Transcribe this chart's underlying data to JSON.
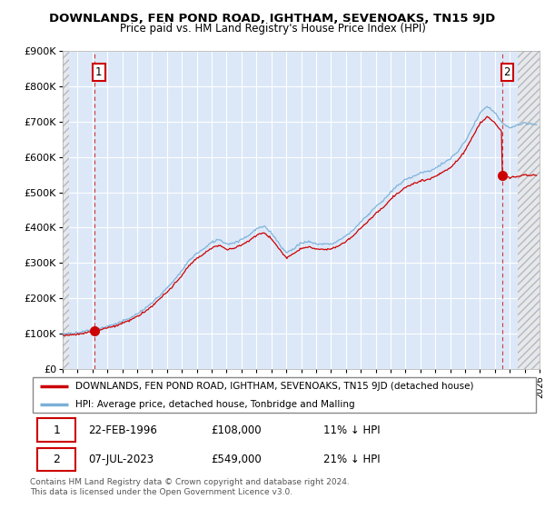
{
  "title": "DOWNLANDS, FEN POND ROAD, IGHTHAM, SEVENOAKS, TN15 9JD",
  "subtitle": "Price paid vs. HM Land Registry's House Price Index (HPI)",
  "ylim": [
    0,
    900000
  ],
  "yticks": [
    0,
    100000,
    200000,
    300000,
    400000,
    500000,
    600000,
    700000,
    800000,
    900000
  ],
  "ytick_labels": [
    "£0",
    "£100K",
    "£200K",
    "£300K",
    "£400K",
    "£500K",
    "£600K",
    "£700K",
    "£800K",
    "£900K"
  ],
  "background_color": "#dce8f8",
  "grid_color": "#ffffff",
  "red_line_color": "#cc0000",
  "blue_line_color": "#7ab0d8",
  "marker1_x": 1996.13,
  "marker1_y": 108000,
  "marker2_x": 2023.52,
  "marker2_y": 549000,
  "legend_label1": "DOWNLANDS, FEN POND ROAD, IGHTHAM, SEVENOAKS, TN15 9JD (detached house)",
  "legend_label2": "HPI: Average price, detached house, Tonbridge and Malling",
  "table_row1": [
    "1",
    "22-FEB-1996",
    "£108,000",
    "11% ↓ HPI"
  ],
  "table_row2": [
    "2",
    "07-JUL-2023",
    "£549,000",
    "21% ↓ HPI"
  ],
  "footer": "Contains HM Land Registry data © Crown copyright and database right 2024.\nThis data is licensed under the Open Government Licence v3.0.",
  "xmin": 1994,
  "xmax": 2026,
  "hpi_knots": [
    [
      1994.0,
      100000
    ],
    [
      1994.5,
      101000
    ],
    [
      1995.0,
      104000
    ],
    [
      1995.5,
      107000
    ],
    [
      1996.0,
      112000
    ],
    [
      1996.5,
      116000
    ],
    [
      1997.0,
      122000
    ],
    [
      1997.5,
      128000
    ],
    [
      1998.0,
      136000
    ],
    [
      1998.5,
      144000
    ],
    [
      1999.0,
      157000
    ],
    [
      1999.5,
      170000
    ],
    [
      2000.0,
      188000
    ],
    [
      2000.5,
      208000
    ],
    [
      2001.0,
      228000
    ],
    [
      2001.5,
      252000
    ],
    [
      2002.0,
      278000
    ],
    [
      2002.5,
      308000
    ],
    [
      2003.0,
      328000
    ],
    [
      2003.5,
      342000
    ],
    [
      2004.0,
      360000
    ],
    [
      2004.5,
      368000
    ],
    [
      2005.0,
      355000
    ],
    [
      2005.5,
      358000
    ],
    [
      2006.0,
      368000
    ],
    [
      2006.5,
      380000
    ],
    [
      2007.0,
      398000
    ],
    [
      2007.5,
      405000
    ],
    [
      2008.0,
      388000
    ],
    [
      2008.5,
      358000
    ],
    [
      2009.0,
      330000
    ],
    [
      2009.5,
      342000
    ],
    [
      2010.0,
      358000
    ],
    [
      2010.5,
      362000
    ],
    [
      2011.0,
      355000
    ],
    [
      2011.5,
      355000
    ],
    [
      2012.0,
      355000
    ],
    [
      2012.5,
      365000
    ],
    [
      2013.0,
      378000
    ],
    [
      2013.5,
      395000
    ],
    [
      2014.0,
      418000
    ],
    [
      2014.5,
      438000
    ],
    [
      2015.0,
      462000
    ],
    [
      2015.5,
      478000
    ],
    [
      2016.0,
      502000
    ],
    [
      2016.5,
      522000
    ],
    [
      2017.0,
      538000
    ],
    [
      2017.5,
      548000
    ],
    [
      2018.0,
      558000
    ],
    [
      2018.5,
      562000
    ],
    [
      2019.0,
      572000
    ],
    [
      2019.5,
      585000
    ],
    [
      2020.0,
      598000
    ],
    [
      2020.5,
      618000
    ],
    [
      2021.0,
      648000
    ],
    [
      2021.5,
      688000
    ],
    [
      2022.0,
      728000
    ],
    [
      2022.5,
      748000
    ],
    [
      2023.0,
      730000
    ],
    [
      2023.5,
      700000
    ],
    [
      2024.0,
      688000
    ],
    [
      2024.5,
      695000
    ],
    [
      2025.0,
      700000
    ],
    [
      2025.5,
      698000
    ]
  ]
}
